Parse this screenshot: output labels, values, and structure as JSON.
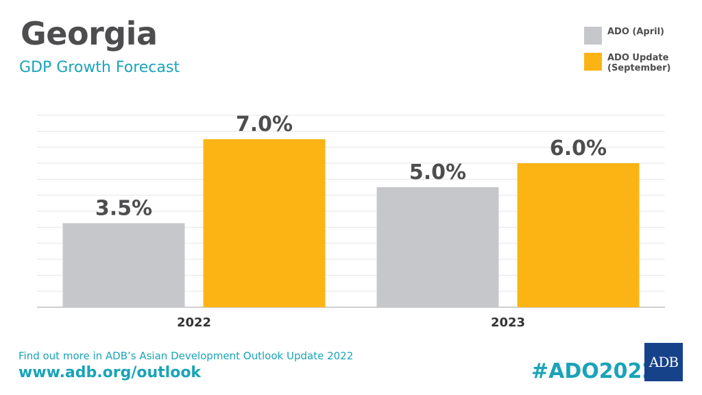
{
  "header": {
    "title": "Georgia",
    "subtitle": "GDP Growth Forecast"
  },
  "legend": [
    {
      "label": "ADO (April)",
      "color": "#c5c7ca"
    },
    {
      "label": "ADO Update\n(September)",
      "color": "#fcb415"
    }
  ],
  "chart_data": {
    "type": "bar",
    "categories": [
      "2022",
      "2023"
    ],
    "series": [
      {
        "name": "ADO (April)",
        "values": [
          3.5,
          5.0
        ],
        "labels": [
          "3.5%",
          "5.0%"
        ],
        "color": "#c5c7ca"
      },
      {
        "name": "ADO Update (September)",
        "values": [
          7.0,
          6.0
        ],
        "labels": [
          "7.0%",
          "6.0%"
        ],
        "color": "#fcb415"
      }
    ],
    "title": "Georgia",
    "subtitle": "GDP Growth Forecast",
    "ylim": [
      0,
      8
    ],
    "grid": true,
    "legend_position": "top-right"
  },
  "footer": {
    "text": "Find out more in ADB’s Asian Development Outlook Update 2022",
    "url": "www.adb.org/outlook",
    "hashtag": "#ADO2022",
    "logo": "ADB"
  }
}
